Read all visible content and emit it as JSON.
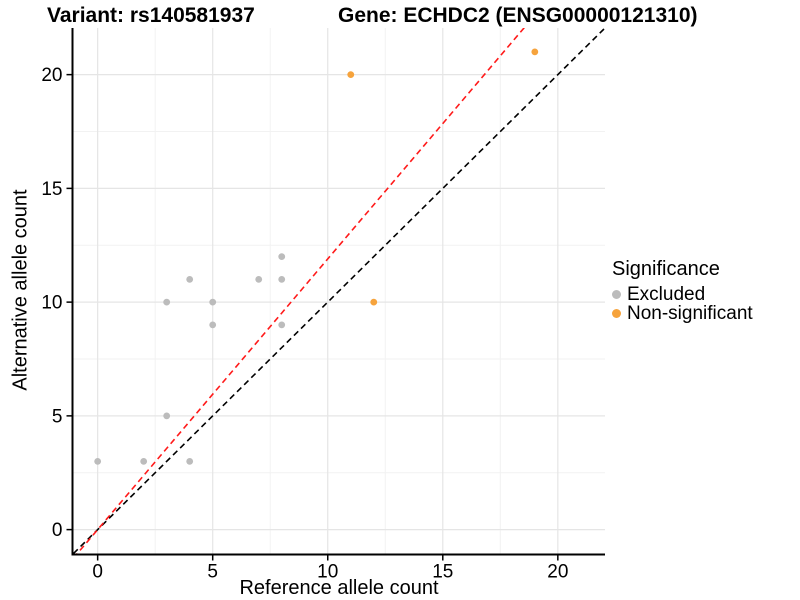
{
  "titles": {
    "left": "Variant: rs140581937",
    "right": "Gene: ECHDC2 (ENSG00000121310)"
  },
  "chart_data": {
    "type": "scatter",
    "xlabel": "Reference allele count",
    "ylabel": "Alternative allele count",
    "xlim": [
      -1.05,
      22.05
    ],
    "ylim": [
      -1.05,
      22.05
    ],
    "x_ticks": [
      0,
      5,
      10,
      15,
      20
    ],
    "y_ticks": [
      0,
      5,
      10,
      15,
      20
    ],
    "x_minor_ticks": [
      2.5,
      7.5,
      12.5,
      17.5
    ],
    "y_minor_ticks": [
      2.5,
      7.5,
      12.5,
      17.5
    ],
    "grid": {
      "major_color": "#e5e5e5",
      "minor_color": "#f2f2f2",
      "background": "#ffffff"
    },
    "series": [
      {
        "name": "Excluded",
        "color": "#bcbcbc",
        "points": [
          [
            0,
            3
          ],
          [
            2,
            3
          ],
          [
            4,
            3
          ],
          [
            3,
            5
          ],
          [
            3,
            10
          ],
          [
            4,
            11
          ],
          [
            5,
            10
          ],
          [
            5,
            9
          ],
          [
            7,
            11
          ],
          [
            8,
            11
          ],
          [
            8,
            12
          ],
          [
            8,
            9
          ]
        ]
      },
      {
        "name": "Non-significant",
        "color": "#f6a33c",
        "points": [
          [
            11,
            20
          ],
          [
            12,
            10
          ],
          [
            19,
            21
          ]
        ]
      }
    ],
    "lines": [
      {
        "name": "identity-line",
        "slope": 1.0,
        "intercept": 0,
        "color": "#000000",
        "dashed": true
      },
      {
        "name": "fit-line",
        "slope": 1.19,
        "intercept": 0,
        "color": "#ff1a1a",
        "dashed": true
      }
    ]
  },
  "legend": {
    "title": "Significance",
    "items": [
      {
        "label": "Excluded",
        "color": "#bcbcbc"
      },
      {
        "label": "Non-significant",
        "color": "#f6a33c"
      }
    ]
  }
}
